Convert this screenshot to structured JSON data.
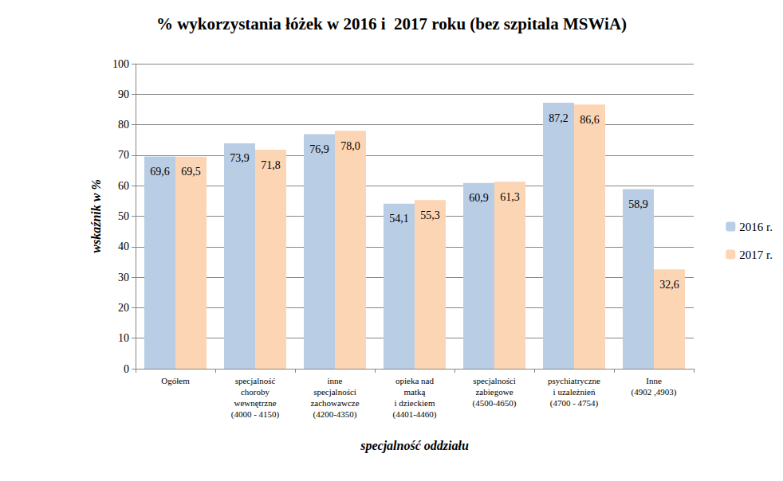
{
  "chart_data": {
    "type": "bar",
    "title": "% wykorzystania łóżek w 2016 i  2017 roku (bez szpitala MSWiA)",
    "x_label": "specjalność oddziału",
    "y_label": "wskaźnik w %",
    "categories": [
      "Ogółem",
      "specjalność\nchoroby\nwewnętrzne\n(4000 - 4150)",
      "inne\nspecjalności\nzachowawcze\n(4200-4350)",
      "opieka nad\nmatką\ni dzieckiem\n(4401-4460)",
      "specjalności\nzabiegowe\n(4500-4650)",
      "psychiatryczne\ni uzależnień\n(4700 - 4754)",
      "Inne\n(4902 ,4903)"
    ],
    "series": [
      {
        "name": "2016 r.",
        "color": "#b9cde5",
        "values": [
          69.6,
          73.9,
          76.9,
          54.1,
          60.9,
          87.2,
          58.9
        ],
        "value_labels": [
          "69,6",
          "73,9",
          "76,9",
          "54,1",
          "60,9",
          "87,2",
          "58,9"
        ]
      },
      {
        "name": "2017 r.",
        "color": "#fcd5b5",
        "values": [
          69.5,
          71.8,
          78.0,
          55.3,
          61.3,
          86.6,
          32.6
        ],
        "value_labels": [
          "69,5",
          "71,8",
          "78,0",
          "55,3",
          "61,3",
          "86,6",
          "32,6"
        ]
      }
    ],
    "ylim": [
      0,
      100
    ],
    "yticks": [
      0,
      10,
      20,
      30,
      40,
      50,
      60,
      70,
      80,
      90,
      100
    ],
    "grid": true,
    "legend": "right",
    "data_labels": true
  }
}
